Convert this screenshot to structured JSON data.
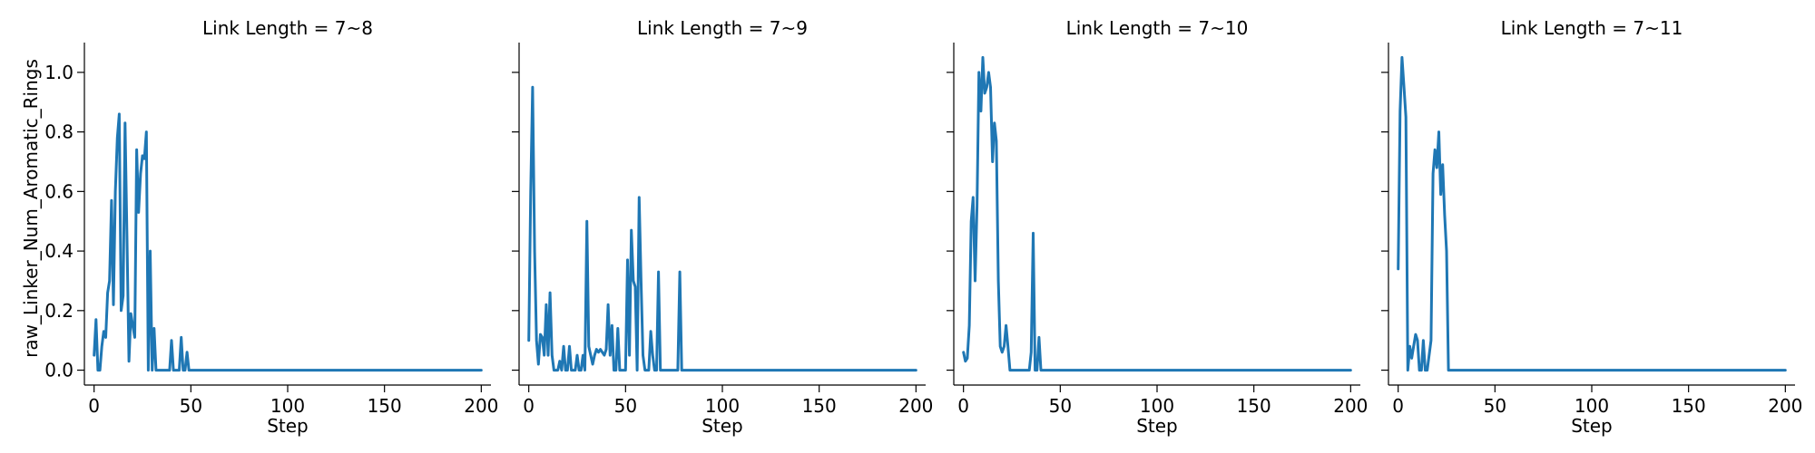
{
  "chart_data": {
    "type": "line",
    "ylabel": "raw_Linker_Num_Aromatic_Rings",
    "xlabel": "Step",
    "xlim": [
      -5,
      205
    ],
    "ylim": [
      -0.05,
      1.1
    ],
    "xticks": [
      0,
      50,
      100,
      150,
      200
    ],
    "yticks": [
      0.0,
      0.2,
      0.4,
      0.6,
      0.8,
      1.0
    ],
    "xtick_labels": [
      "0",
      "50",
      "100",
      "150",
      "200"
    ],
    "ytick_labels": [
      "0.0",
      "0.2",
      "0.4",
      "0.6",
      "0.8",
      "1.0"
    ],
    "color": "#1f77b4",
    "grid": false,
    "panels": [
      {
        "title": "Link Length = 7~8",
        "x": [
          0,
          1,
          2,
          3,
          4,
          5,
          6,
          7,
          8,
          9,
          10,
          11,
          12,
          13,
          14,
          15,
          16,
          17,
          18,
          19,
          20,
          21,
          22,
          23,
          24,
          25,
          26,
          27,
          28,
          29,
          30,
          31,
          32,
          33,
          34,
          35,
          36,
          37,
          38,
          39,
          40,
          41,
          42,
          43,
          44,
          45,
          46,
          47,
          48,
          49,
          50,
          51,
          52,
          53,
          54,
          55,
          56,
          60,
          80,
          100,
          120,
          140,
          160,
          180,
          200
        ],
        "y": [
          0.05,
          0.17,
          0.0,
          0.0,
          0.08,
          0.13,
          0.11,
          0.26,
          0.3,
          0.57,
          0.22,
          0.6,
          0.78,
          0.86,
          0.2,
          0.25,
          0.83,
          0.45,
          0.03,
          0.19,
          0.15,
          0.11,
          0.74,
          0.53,
          0.66,
          0.72,
          0.71,
          0.8,
          0.0,
          0.4,
          0.0,
          0.14,
          0.0,
          0.0,
          0.0,
          0.0,
          0.0,
          0.0,
          0.0,
          0.0,
          0.1,
          0.0,
          0.0,
          0.0,
          0.0,
          0.11,
          0.0,
          0.0,
          0.06,
          0.0,
          0.0,
          0.0,
          0.0,
          0.0,
          0.0,
          0.0,
          0.0,
          0.0,
          0.0,
          0.0,
          0.0,
          0.0,
          0.0,
          0.0,
          0.0
        ]
      },
      {
        "title": "Link Length = 7~9",
        "x": [
          0,
          1,
          2,
          3,
          4,
          5,
          6,
          7,
          8,
          9,
          10,
          11,
          12,
          13,
          14,
          15,
          16,
          17,
          18,
          19,
          20,
          21,
          22,
          23,
          24,
          25,
          26,
          27,
          28,
          29,
          30,
          31,
          32,
          33,
          34,
          35,
          36,
          37,
          38,
          39,
          40,
          41,
          42,
          43,
          44,
          45,
          46,
          47,
          48,
          49,
          50,
          51,
          52,
          53,
          54,
          55,
          56,
          57,
          58,
          59,
          60,
          61,
          62,
          63,
          64,
          65,
          66,
          67,
          68,
          69,
          70,
          71,
          72,
          73,
          74,
          75,
          76,
          77,
          78,
          79,
          80,
          81,
          82,
          83,
          90,
          120,
          150,
          200
        ],
        "y": [
          0.1,
          0.6,
          0.95,
          0.4,
          0.1,
          0.02,
          0.12,
          0.11,
          0.05,
          0.22,
          0.05,
          0.26,
          0.05,
          0.0,
          0.0,
          0.0,
          0.03,
          0.0,
          0.08,
          0.0,
          0.0,
          0.08,
          0.0,
          0.0,
          0.0,
          0.05,
          0.0,
          0.0,
          0.05,
          0.0,
          0.5,
          0.08,
          0.05,
          0.02,
          0.05,
          0.07,
          0.06,
          0.07,
          0.06,
          0.05,
          0.07,
          0.22,
          0.05,
          0.15,
          0.0,
          0.0,
          0.14,
          0.0,
          0.0,
          0.0,
          0.0,
          0.37,
          0.05,
          0.47,
          0.3,
          0.28,
          0.0,
          0.58,
          0.3,
          0.05,
          0.0,
          0.0,
          0.0,
          0.13,
          0.05,
          0.0,
          0.0,
          0.33,
          0.0,
          0.0,
          0.0,
          0.0,
          0.0,
          0.0,
          0.0,
          0.0,
          0.0,
          0.0,
          0.33,
          0.0,
          0.0,
          0.0,
          0.0,
          0.0,
          0.0,
          0.0,
          0.0,
          0.0
        ]
      },
      {
        "title": "Link Length = 7~10",
        "x": [
          0,
          1,
          2,
          3,
          4,
          5,
          6,
          7,
          8,
          9,
          10,
          11,
          12,
          13,
          14,
          15,
          16,
          17,
          18,
          19,
          20,
          21,
          22,
          23,
          24,
          25,
          26,
          27,
          28,
          29,
          30,
          31,
          32,
          33,
          34,
          35,
          36,
          37,
          38,
          39,
          40,
          41,
          42,
          50,
          100,
          150,
          200
        ],
        "y": [
          0.06,
          0.03,
          0.04,
          0.15,
          0.5,
          0.58,
          0.3,
          0.55,
          1.0,
          0.87,
          1.05,
          0.93,
          0.95,
          1.0,
          0.95,
          0.7,
          0.83,
          0.77,
          0.3,
          0.08,
          0.06,
          0.08,
          0.15,
          0.08,
          0.0,
          0.0,
          0.0,
          0.0,
          0.0,
          0.0,
          0.0,
          0.0,
          0.0,
          0.0,
          0.0,
          0.06,
          0.46,
          0.0,
          0.0,
          0.11,
          0.0,
          0.0,
          0.0,
          0.0,
          0.0,
          0.0,
          0.0
        ]
      },
      {
        "title": "Link Length = 7~11",
        "x": [
          0,
          1,
          2,
          3,
          4,
          5,
          6,
          7,
          8,
          9,
          10,
          11,
          12,
          13,
          14,
          15,
          16,
          17,
          18,
          19,
          20,
          21,
          22,
          23,
          24,
          25,
          26,
          27,
          30,
          50,
          100,
          150,
          200
        ],
        "y": [
          0.34,
          0.87,
          1.05,
          0.95,
          0.85,
          0.0,
          0.08,
          0.04,
          0.08,
          0.12,
          0.1,
          0.0,
          0.0,
          0.1,
          0.0,
          0.0,
          0.05,
          0.1,
          0.66,
          0.74,
          0.68,
          0.8,
          0.59,
          0.69,
          0.52,
          0.4,
          0.0,
          0.0,
          0.0,
          0.0,
          0.0,
          0.0,
          0.0
        ]
      }
    ]
  }
}
